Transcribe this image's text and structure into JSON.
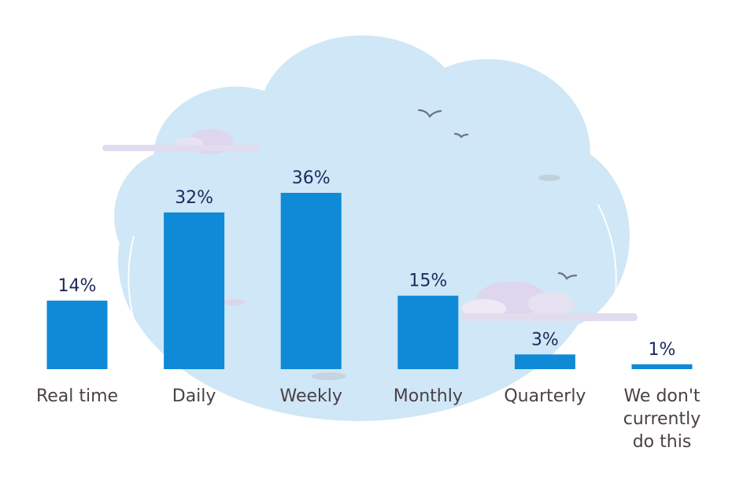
{
  "chart_data": {
    "type": "bar",
    "categories": [
      "Real time",
      "Daily",
      "Weekly",
      "Monthly",
      "Quarterly",
      "We don't currently do this"
    ],
    "category_lines": [
      [
        "Real time"
      ],
      [
        "Daily"
      ],
      [
        "Weekly"
      ],
      [
        "Monthly"
      ],
      [
        "Quarterly"
      ],
      [
        "We don't",
        "currently",
        "do this"
      ]
    ],
    "values": [
      14,
      32,
      36,
      15,
      3,
      1
    ],
    "value_labels": [
      "14%",
      "32%",
      "36%",
      "15%",
      "3%",
      "1%"
    ],
    "unit": "%",
    "title": "",
    "xlabel": "",
    "ylabel": "",
    "ylim": [
      0,
      36
    ],
    "grid": false,
    "legend": "none",
    "colors": {
      "bar": "#0f8ad7",
      "value_text": "#1c2a5b",
      "category_text": "#4a4048",
      "cloud": "#cfe7f6",
      "small_clouds": "#ddd6ec",
      "birds": "#6e7180"
    }
  }
}
